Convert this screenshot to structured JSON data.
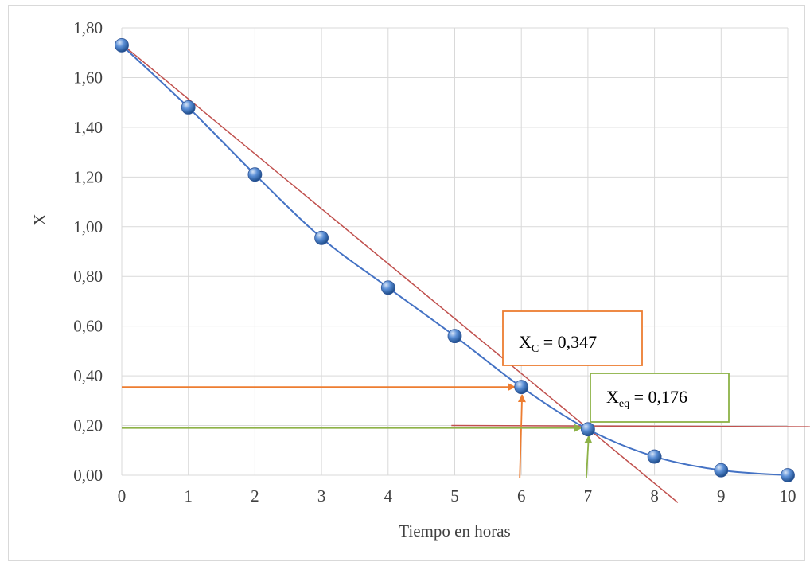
{
  "chart_data": {
    "type": "scatter",
    "title": "",
    "xlabel": "Tiempo en horas",
    "ylabel": "X",
    "xlim": [
      0,
      10
    ],
    "ylim": [
      0,
      1.8
    ],
    "x_ticks": [
      "0",
      "1",
      "2",
      "3",
      "4",
      "5",
      "6",
      "7",
      "8",
      "9",
      "10"
    ],
    "y_ticks": [
      "0,00",
      "0,20",
      "0,40",
      "0,60",
      "0,80",
      "1,00",
      "1,20",
      "1,40",
      "1,60",
      "1,80"
    ],
    "grid": true,
    "series": [
      {
        "color": "#4472C4",
        "line": "smooth",
        "marker": "sphere",
        "x": [
          0,
          1,
          2,
          3,
          4,
          5,
          6,
          7,
          8,
          9,
          10
        ],
        "y": [
          1.73,
          1.48,
          1.21,
          0.955,
          0.755,
          0.56,
          0.355,
          0.185,
          0.075,
          0.02,
          0.0
        ]
      }
    ],
    "reference_lines": [
      {
        "kind": "tangent",
        "color": "#C0504D",
        "from": [
          0,
          1.735
        ],
        "to": [
          8.35,
          -0.11
        ]
      },
      {
        "kind": "equilibrium",
        "color": "#C0504D",
        "from": [
          4.95,
          0.2
        ],
        "to": [
          10.4,
          0.195
        ]
      }
    ],
    "annotations": [
      {
        "main": "X",
        "sub": "C",
        "value": " = 0,347",
        "color": "#ED7D31",
        "point": [
          6,
          0.355
        ],
        "h_arrow_from_x": 0,
        "v_arrow_from_y": -0.01
      },
      {
        "main": "X",
        "sub": "eq",
        "value": " = 0,176",
        "color": "#8DB247",
        "point": [
          7,
          0.19
        ],
        "h_arrow_from_x": 0,
        "v_arrow_from_y": -0.01
      }
    ]
  }
}
